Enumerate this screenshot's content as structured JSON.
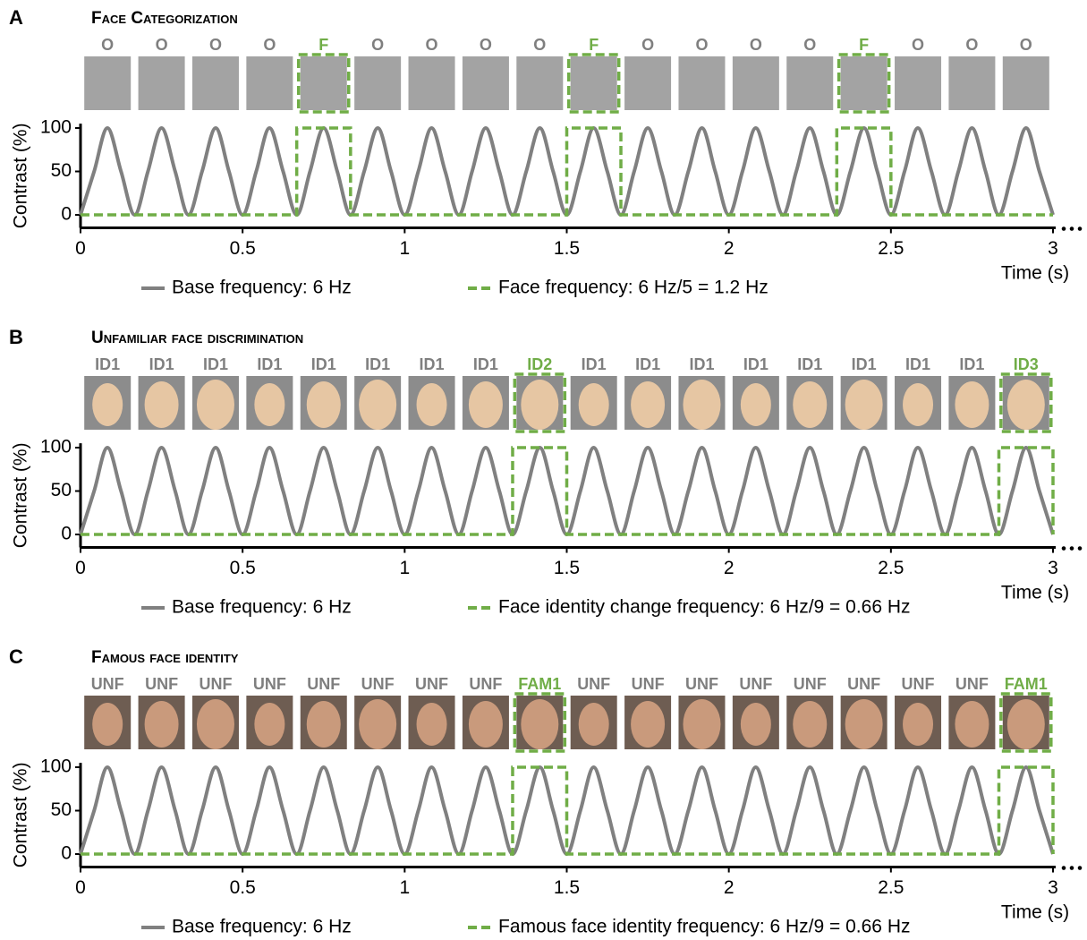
{
  "chart_data": [
    {
      "type": "line",
      "panel": "A",
      "title": "Face Categorization",
      "categories": [
        "O",
        "O",
        "O",
        "O",
        "F",
        "O",
        "O",
        "O",
        "O",
        "F",
        "O",
        "O",
        "O",
        "O",
        "F",
        "O",
        "O",
        "O"
      ],
      "xlabel": "Time (s)",
      "ylabel": "Contrast (%)",
      "xlim": [
        0,
        3
      ],
      "ylim": [
        -15,
        105
      ],
      "xticks": [
        0,
        0.5,
        1,
        1.5,
        2,
        2.5,
        3
      ],
      "yticks": [
        0,
        50,
        100
      ],
      "series": [
        {
          "name": "Base frequency: 6 Hz",
          "color": "#808080",
          "x": [
            0,
            0.042,
            0.083,
            0.125,
            0.167,
            0.208,
            0.25,
            0.292,
            0.333,
            0.375,
            0.417,
            0.458,
            0.5,
            0.542,
            0.583,
            0.625,
            0.667,
            0.708,
            0.75,
            0.792,
            0.833,
            0.875,
            0.917,
            0.958,
            1,
            1.042,
            1.083,
            1.125,
            1.167,
            1.208,
            1.25,
            1.292,
            1.333,
            1.375,
            1.417,
            1.458,
            1.5,
            1.542,
            1.583,
            1.625,
            1.667,
            1.708,
            1.75,
            1.792,
            1.833,
            1.875,
            1.917,
            1.958,
            2,
            2.042,
            2.083,
            2.125,
            2.167,
            2.208,
            2.25,
            2.292,
            2.333,
            2.375,
            2.417,
            2.458,
            2.5,
            2.542,
            2.583,
            2.625,
            2.667,
            2.708,
            2.75,
            2.792,
            2.833,
            2.875,
            2.917,
            2.958,
            3
          ],
          "values": [
            0,
            50,
            100,
            50,
            0,
            50,
            100,
            50,
            0,
            50,
            100,
            50,
            0,
            50,
            100,
            50,
            0,
            50,
            100,
            50,
            0,
            50,
            100,
            50,
            0,
            50,
            100,
            50,
            0,
            50,
            100,
            50,
            0,
            50,
            100,
            50,
            0,
            50,
            100,
            50,
            0,
            50,
            100,
            50,
            0,
            50,
            100,
            50,
            0,
            50,
            100,
            50,
            0,
            50,
            100,
            50,
            0,
            50,
            100,
            50,
            0,
            50,
            100,
            50,
            0,
            50,
            100,
            50,
            0,
            50,
            100,
            50,
            0
          ]
        },
        {
          "name": "Face frequency: 6 Hz/5 = 1.2 Hz",
          "color": "#70ad47",
          "x": [
            0,
            0.667,
            0.667,
            0.833,
            0.833,
            1.5,
            1.5,
            1.667,
            1.667,
            2.333,
            2.333,
            2.5,
            2.5,
            3
          ],
          "values": [
            0,
            0,
            100,
            100,
            0,
            0,
            100,
            100,
            0,
            0,
            100,
            100,
            0,
            0
          ]
        }
      ]
    },
    {
      "type": "line",
      "panel": "B",
      "title": "Unfamiliar face discrimination",
      "categories": [
        "ID1",
        "ID1",
        "ID1",
        "ID1",
        "ID1",
        "ID1",
        "ID1",
        "ID1",
        "ID2",
        "ID1",
        "ID1",
        "ID1",
        "ID1",
        "ID1",
        "ID1",
        "ID1",
        "ID1",
        "ID3"
      ],
      "xlabel": "Time (s)",
      "ylabel": "Contrast (%)",
      "xlim": [
        0,
        3
      ],
      "ylim": [
        -15,
        105
      ],
      "xticks": [
        0,
        0.5,
        1,
        1.5,
        2,
        2.5,
        3
      ],
      "yticks": [
        0,
        50,
        100
      ],
      "series": [
        {
          "name": "Base frequency: 6 Hz",
          "color": "#808080",
          "x": [
            0,
            0.042,
            0.083,
            0.125,
            0.167,
            0.208,
            0.25,
            0.292,
            0.333,
            0.375,
            0.417,
            0.458,
            0.5,
            0.542,
            0.583,
            0.625,
            0.667,
            0.708,
            0.75,
            0.792,
            0.833,
            0.875,
            0.917,
            0.958,
            1,
            1.042,
            1.083,
            1.125,
            1.167,
            1.208,
            1.25,
            1.292,
            1.333,
            1.375,
            1.417,
            1.458,
            1.5,
            1.542,
            1.583,
            1.625,
            1.667,
            1.708,
            1.75,
            1.792,
            1.833,
            1.875,
            1.917,
            1.958,
            2,
            2.042,
            2.083,
            2.125,
            2.167,
            2.208,
            2.25,
            2.292,
            2.333,
            2.375,
            2.417,
            2.458,
            2.5,
            2.542,
            2.583,
            2.625,
            2.667,
            2.708,
            2.75,
            2.792,
            2.833,
            2.875,
            2.917,
            2.958,
            3
          ],
          "values": [
            0,
            50,
            100,
            50,
            0,
            50,
            100,
            50,
            0,
            50,
            100,
            50,
            0,
            50,
            100,
            50,
            0,
            50,
            100,
            50,
            0,
            50,
            100,
            50,
            0,
            50,
            100,
            50,
            0,
            50,
            100,
            50,
            0,
            50,
            100,
            50,
            0,
            50,
            100,
            50,
            0,
            50,
            100,
            50,
            0,
            50,
            100,
            50,
            0,
            50,
            100,
            50,
            0,
            50,
            100,
            50,
            0,
            50,
            100,
            50,
            0,
            50,
            100,
            50,
            0,
            50,
            100,
            50,
            0,
            50,
            100,
            50,
            0
          ]
        },
        {
          "name": "Face identity change frequency: 6 Hz/9 = 0.66 Hz",
          "color": "#70ad47",
          "x": [
            0,
            1.333,
            1.333,
            1.5,
            1.5,
            2.833,
            2.833,
            3,
            3
          ],
          "values": [
            0,
            0,
            100,
            100,
            0,
            0,
            100,
            100,
            0
          ]
        }
      ]
    },
    {
      "type": "line",
      "panel": "C",
      "title": "Famous face identity",
      "categories": [
        "UNF",
        "UNF",
        "UNF",
        "UNF",
        "UNF",
        "UNF",
        "UNF",
        "UNF",
        "FAM1",
        "UNF",
        "UNF",
        "UNF",
        "UNF",
        "UNF",
        "UNF",
        "UNF",
        "UNF",
        "FAM1"
      ],
      "xlabel": "Time (s)",
      "ylabel": "Contrast (%)",
      "xlim": [
        0,
        3
      ],
      "ylim": [
        -15,
        105
      ],
      "xticks": [
        0,
        0.5,
        1,
        1.5,
        2,
        2.5,
        3
      ],
      "yticks": [
        0,
        50,
        100
      ],
      "series": [
        {
          "name": "Base frequency: 6 Hz",
          "color": "#808080",
          "x": [
            0,
            0.042,
            0.083,
            0.125,
            0.167,
            0.208,
            0.25,
            0.292,
            0.333,
            0.375,
            0.417,
            0.458,
            0.5,
            0.542,
            0.583,
            0.625,
            0.667,
            0.708,
            0.75,
            0.792,
            0.833,
            0.875,
            0.917,
            0.958,
            1,
            1.042,
            1.083,
            1.125,
            1.167,
            1.208,
            1.25,
            1.292,
            1.333,
            1.375,
            1.417,
            1.458,
            1.5,
            1.542,
            1.583,
            1.625,
            1.667,
            1.708,
            1.75,
            1.792,
            1.833,
            1.875,
            1.917,
            1.958,
            2,
            2.042,
            2.083,
            2.125,
            2.167,
            2.208,
            2.25,
            2.292,
            2.333,
            2.375,
            2.417,
            2.458,
            2.5,
            2.542,
            2.583,
            2.625,
            2.667,
            2.708,
            2.75,
            2.792,
            2.833,
            2.875,
            2.917,
            2.958,
            3
          ],
          "values": [
            0,
            50,
            100,
            50,
            0,
            50,
            100,
            50,
            0,
            50,
            100,
            50,
            0,
            50,
            100,
            50,
            0,
            50,
            100,
            50,
            0,
            50,
            100,
            50,
            0,
            50,
            100,
            50,
            0,
            50,
            100,
            50,
            0,
            50,
            100,
            50,
            0,
            50,
            100,
            50,
            0,
            50,
            100,
            50,
            0,
            50,
            100,
            50,
            0,
            50,
            100,
            50,
            0,
            50,
            100,
            50,
            0,
            50,
            100,
            50,
            0,
            50,
            100,
            50,
            0,
            50,
            100,
            50,
            0,
            50,
            100,
            50,
            0
          ]
        },
        {
          "name": "Famous face identity frequency: 6 Hz/9 = 0.66 Hz",
          "color": "#70ad47",
          "x": [
            0,
            1.333,
            1.333,
            1.5,
            1.5,
            2.833,
            2.833,
            3,
            3
          ],
          "values": [
            0,
            0,
            100,
            100,
            0,
            0,
            100,
            100,
            0
          ]
        }
      ]
    }
  ]
}
